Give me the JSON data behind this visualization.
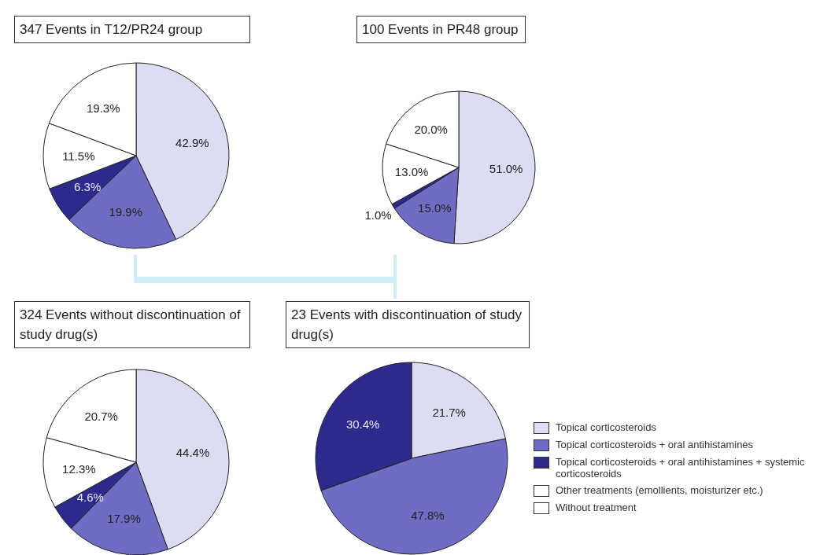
{
  "chart_data": [
    {
      "type": "pie",
      "title": "347 Events in T12/PR24 group",
      "categories": [
        null,
        null,
        null,
        null,
        null
      ],
      "values": [
        42.9,
        19.9,
        6.3,
        11.5,
        19.3
      ],
      "value_labels": [
        "42.9%",
        "19.9%",
        "6.3%",
        "11.5%",
        "19.3%"
      ],
      "colors": [
        "#dcdcf2",
        "#6f6cc4",
        "#2c2a8c",
        "#ffffff",
        "#ffffff"
      ]
    },
    {
      "type": "pie",
      "title": "100 Events in PR48 group",
      "categories": [
        null,
        null,
        null,
        null,
        null
      ],
      "values": [
        51.0,
        15.0,
        1.0,
        13.0,
        20.0
      ],
      "value_labels": [
        "51.0%",
        "15.0%",
        "1.0%",
        "13.0%",
        "20.0%"
      ],
      "colors": [
        "#dcdcf2",
        "#6f6cc4",
        "#2c2a8c",
        "#ffffff",
        "#ffffff"
      ]
    },
    {
      "type": "pie",
      "title": "324 Events without discontinuation of study drug(s)",
      "categories": [
        null,
        null,
        null,
        null,
        null
      ],
      "values": [
        44.4,
        17.9,
        4.6,
        12.3,
        20.7
      ],
      "value_labels": [
        "44.4%",
        "17.9%",
        "4.6%",
        "12.3%",
        "20.7%"
      ],
      "colors": [
        "#dcdcf2",
        "#6f6cc4",
        "#2c2a8c",
        "#ffffff",
        "#ffffff"
      ]
    },
    {
      "type": "pie",
      "title": "23 Events with discontinuation of study drug(s)",
      "categories": [
        "Topical corticosteroids",
        "Topical corticosteroids + oral antihistamines",
        "Topical corticosteroids + oral antihistamines + systemic corticosteroids",
        "Other treatments (emollients, moisturizer etc.)",
        "Without treatment"
      ],
      "values": [
        21.7,
        47.8,
        30.4,
        null,
        null
      ],
      "value_labels": [
        "21.7%",
        "47.8%",
        "30.4%",
        null,
        null
      ],
      "colors": [
        "#dcdcf2",
        "#6f6cc4",
        "#2c2a8c",
        "#ffffff",
        "#ffffff"
      ],
      "legend": "right"
    }
  ]
}
